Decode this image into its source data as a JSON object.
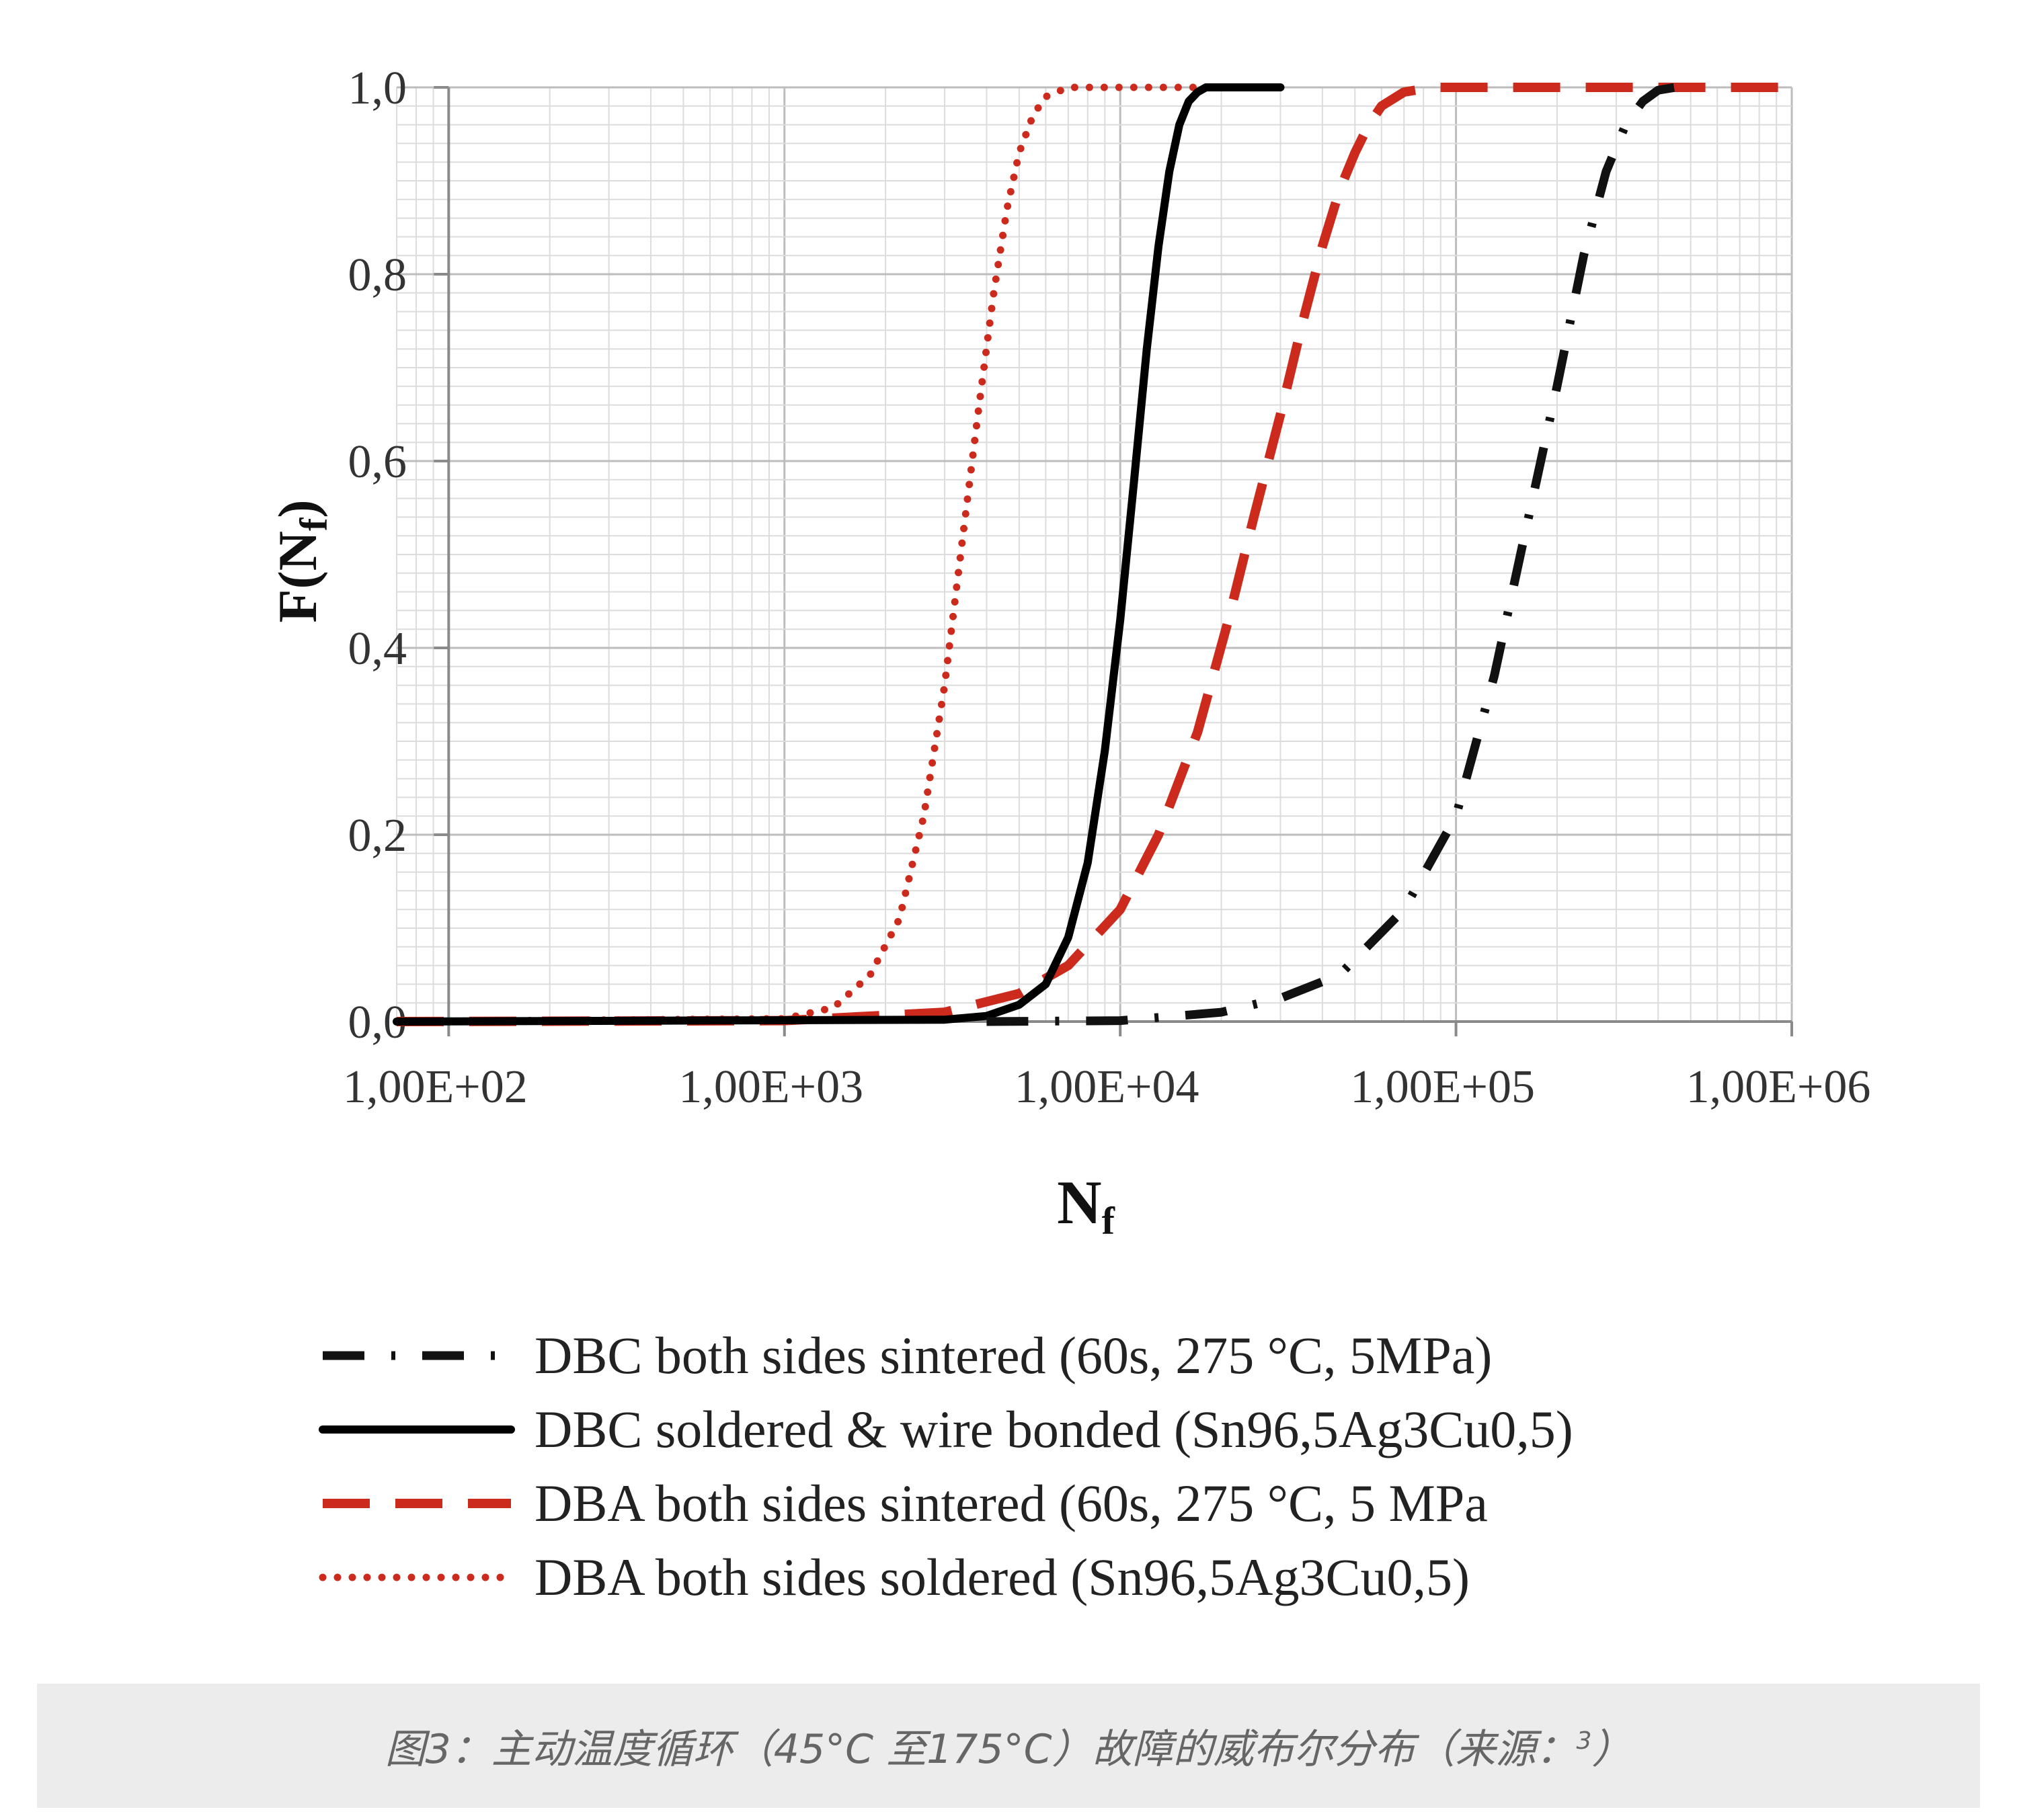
{
  "chart_data": {
    "type": "line",
    "title": "",
    "xlabel": "N",
    "xlabel_subscript": "f",
    "ylabel": "F(N",
    "ylabel_subscript": "f",
    "ylabel_close": ")",
    "x_scale": "log",
    "xlim": [
      70,
      1000000
    ],
    "ylim": [
      0,
      1
    ],
    "grid": true,
    "x_ticks": [
      100,
      1000,
      10000,
      100000,
      1000000
    ],
    "x_tick_labels": [
      "1,00E+02",
      "1,00E+03",
      "1,00E+04",
      "1,00E+05",
      "1,00E+06"
    ],
    "y_ticks": [
      0,
      0.2,
      0.4,
      0.6,
      0.8,
      1.0
    ],
    "y_tick_labels": [
      "0,0",
      "0,2",
      "0,4",
      "0,6",
      "0,8",
      "1,0"
    ],
    "legend_position": "bottom",
    "series": [
      {
        "name": "DBC both sides sintered (60s, 275 °C, 5MPa)",
        "style": "dash-dot",
        "color": "#111111",
        "x": [
          4000,
          10000,
          20000,
          30000,
          45000,
          70000,
          100000,
          130000,
          160000,
          200000,
          240000,
          280000,
          320000,
          360000,
          400000,
          450000
        ],
        "y": [
          0,
          0.001,
          0.01,
          0.025,
          0.05,
          0.12,
          0.22,
          0.37,
          0.52,
          0.68,
          0.82,
          0.91,
          0.96,
          0.985,
          0.997,
          1.0
        ]
      },
      {
        "name": "DBC soldered & wire bonded (Sn96,5Ag3Cu0,5)",
        "style": "solid",
        "color": "#000000",
        "x": [
          70,
          3000,
          4000,
          5000,
          6000,
          7000,
          8000,
          9000,
          10000,
          11000,
          12000,
          13000,
          14000,
          15000,
          16000,
          17000,
          18000,
          20000,
          30000
        ],
        "y": [
          0,
          0.002,
          0.006,
          0.018,
          0.04,
          0.09,
          0.17,
          0.29,
          0.43,
          0.58,
          0.72,
          0.83,
          0.91,
          0.96,
          0.985,
          0.995,
          1.0,
          1.0,
          1.0
        ]
      },
      {
        "name": "DBA both sides sintered (60s, 275 °C, 5 MPa",
        "style": "dashed",
        "color": "#cc2a1c",
        "x": [
          70,
          1000,
          3000,
          5000,
          7000,
          10000,
          13000,
          17000,
          21000,
          25000,
          30000,
          35000,
          40000,
          45000,
          50000,
          55000,
          60000,
          70000,
          85000,
          100000,
          200000,
          1000000
        ],
        "y": [
          0,
          0.001,
          0.01,
          0.03,
          0.06,
          0.12,
          0.2,
          0.31,
          0.43,
          0.54,
          0.65,
          0.75,
          0.83,
          0.89,
          0.93,
          0.96,
          0.98,
          0.995,
          1.0,
          1.0,
          1.0,
          1.0
        ]
      },
      {
        "name": "DBA both sides soldered (Sn96,5Ag3Cu0,5)",
        "style": "dotted",
        "color": "#cc2a1c",
        "x": [
          70,
          1000,
          1400,
          1800,
          2200,
          2600,
          3000,
          3400,
          3800,
          4200,
          4600,
          5000,
          5500,
          6000,
          7000,
          10000,
          20000,
          30000
        ],
        "y": [
          0,
          0.003,
          0.015,
          0.05,
          0.11,
          0.22,
          0.36,
          0.52,
          0.66,
          0.78,
          0.87,
          0.93,
          0.97,
          0.99,
          1.0,
          1.0,
          1.0,
          1.0
        ]
      }
    ]
  },
  "caption": {
    "text": "图3：主动温度循环（45°C 至175°C）故障的威布尔分布（来源：",
    "superscript": "3",
    "close": "）"
  }
}
